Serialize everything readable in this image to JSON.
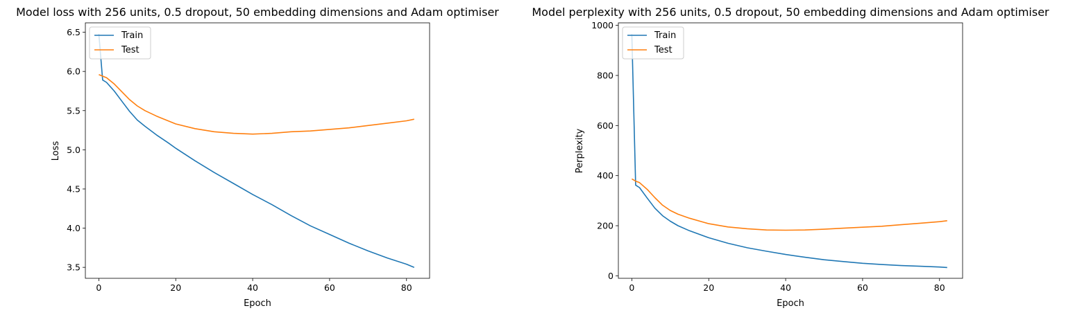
{
  "colors": {
    "train": "#1f77b4",
    "test": "#ff7f0e"
  },
  "chart_data": [
    {
      "type": "line",
      "title": "Model loss with 256 units, 0.5 dropout, 50 embedding dimensions and Adam optimiser",
      "xlabel": "Epoch",
      "ylabel": "Loss",
      "xlim": [
        -3.5,
        86
      ],
      "ylim": [
        3.36,
        6.62
      ],
      "xticks": [
        0,
        20,
        40,
        60,
        80
      ],
      "yticks": [
        3.5,
        4.0,
        4.5,
        5.0,
        5.5,
        6.0,
        6.5
      ],
      "ytick_labels": [
        "3.5",
        "4.0",
        "4.5",
        "5.0",
        "5.5",
        "6.0",
        "6.5"
      ],
      "legend": {
        "placement": "top-left",
        "entries": [
          "Train",
          "Test"
        ]
      },
      "grid": false,
      "series": [
        {
          "name": "Train",
          "color": "#1f77b4",
          "x": [
            0,
            1,
            2,
            4,
            6,
            8,
            10,
            12,
            15,
            18,
            20,
            25,
            30,
            35,
            40,
            45,
            50,
            55,
            60,
            65,
            70,
            75,
            80,
            82
          ],
          "y": [
            6.48,
            5.89,
            5.86,
            5.75,
            5.62,
            5.49,
            5.38,
            5.3,
            5.19,
            5.09,
            5.02,
            4.86,
            4.71,
            4.57,
            4.43,
            4.3,
            4.16,
            4.03,
            3.92,
            3.81,
            3.71,
            3.62,
            3.54,
            3.5
          ]
        },
        {
          "name": "Test",
          "color": "#ff7f0e",
          "x": [
            0,
            1,
            2,
            4,
            6,
            8,
            10,
            12,
            15,
            20,
            25,
            30,
            35,
            40,
            45,
            50,
            55,
            60,
            65,
            70,
            75,
            80,
            82
          ],
          "y": [
            5.96,
            5.94,
            5.92,
            5.84,
            5.74,
            5.64,
            5.56,
            5.5,
            5.43,
            5.33,
            5.27,
            5.23,
            5.21,
            5.2,
            5.21,
            5.23,
            5.24,
            5.26,
            5.28,
            5.31,
            5.34,
            5.37,
            5.39
          ]
        }
      ]
    },
    {
      "type": "line",
      "title": "Model perplexity with 256 units, 0.5 dropout, 50 embedding dimensions and Adam optimiser",
      "xlabel": "Epoch",
      "ylabel": "Perplexity",
      "xlim": [
        -3.5,
        86
      ],
      "ylim": [
        -10,
        1010
      ],
      "xticks": [
        0,
        20,
        40,
        60,
        80
      ],
      "yticks": [
        0,
        200,
        400,
        600,
        800,
        1000
      ],
      "ytick_labels": [
        "0",
        "200",
        "400",
        "600",
        "800",
        "1000"
      ],
      "legend": {
        "placement": "top-left",
        "entries": [
          "Train",
          "Test"
        ]
      },
      "grid": false,
      "series": [
        {
          "name": "Train",
          "color": "#1f77b4",
          "x": [
            0,
            1,
            2,
            4,
            6,
            8,
            10,
            12,
            15,
            20,
            25,
            30,
            35,
            40,
            45,
            50,
            55,
            60,
            65,
            70,
            75,
            80,
            82
          ],
          "y": [
            965,
            362,
            352,
            310,
            270,
            240,
            218,
            200,
            180,
            152,
            130,
            112,
            98,
            85,
            74,
            64,
            57,
            50,
            45,
            41,
            38,
            35,
            33
          ]
        },
        {
          "name": "Test",
          "color": "#ff7f0e",
          "x": [
            0,
            1,
            2,
            4,
            6,
            8,
            10,
            12,
            15,
            20,
            25,
            30,
            35,
            40,
            45,
            50,
            55,
            60,
            65,
            70,
            75,
            80,
            82
          ],
          "y": [
            387,
            378,
            372,
            345,
            312,
            282,
            261,
            246,
            230,
            208,
            195,
            188,
            183,
            182,
            183,
            186,
            190,
            194,
            198,
            204,
            210,
            216,
            220
          ]
        }
      ]
    }
  ]
}
